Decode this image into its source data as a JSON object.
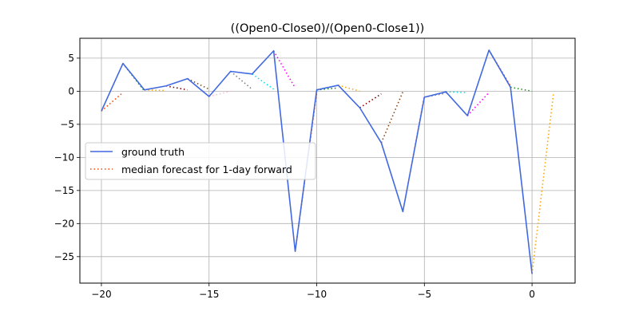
{
  "chart_data": {
    "type": "line",
    "title": "((Open0-Close0)/(Open0-Close1))",
    "xlabel": "",
    "ylabel": "",
    "xlim": [
      -21,
      2
    ],
    "ylim": [
      -29,
      8
    ],
    "xticks": [
      -20,
      -15,
      -10,
      -5,
      0
    ],
    "xtick_labels": [
      "−20",
      "−15",
      "−10",
      "−5",
      "0"
    ],
    "yticks": [
      5,
      0,
      -5,
      -10,
      -15,
      -20,
      -25
    ],
    "ytick_labels": [
      "5",
      "0",
      "−5",
      "−10",
      "−15",
      "−20",
      "−25"
    ],
    "grid": true,
    "legend_position": "center-left",
    "legend": [
      "ground truth",
      "median forecast for 1-day forward"
    ],
    "series": [
      {
        "name": "ground truth",
        "color": "#4169e1",
        "style": "solid",
        "x": [
          -20,
          -19,
          -18,
          -17,
          -16,
          -15,
          -14,
          -13,
          -12,
          -11,
          -10,
          -9,
          -8,
          -7,
          -6,
          -5,
          -4,
          -3,
          -2,
          -1,
          0
        ],
        "y": [
          -3.0,
          4.2,
          0.2,
          0.8,
          1.9,
          -0.8,
          3.0,
          2.6,
          6.1,
          -24.2,
          0.2,
          0.9,
          -2.5,
          -7.8,
          -18.2,
          -0.9,
          -0.1,
          -3.7,
          6.2,
          0.6,
          -27.6
        ]
      }
    ],
    "forecast_segments": [
      {
        "x": [
          -20,
          -19
        ],
        "y": [
          -3.0,
          -0.2
        ],
        "color": "#ff4500"
      },
      {
        "x": [
          -19,
          -18
        ],
        "y": [
          4.2,
          0.0
        ],
        "color": "#228b22"
      },
      {
        "x": [
          -18,
          -17
        ],
        "y": [
          0.2,
          0.1
        ],
        "color": "#ffa500"
      },
      {
        "x": [
          -17,
          -16
        ],
        "y": [
          0.8,
          0.2
        ],
        "color": "#800000"
      },
      {
        "x": [
          -16,
          -15
        ],
        "y": [
          1.9,
          0.3
        ],
        "color": "#8b4513"
      },
      {
        "x": [
          -15,
          -14
        ],
        "y": [
          -0.8,
          0.0
        ],
        "color": "#ffc0cb"
      },
      {
        "x": [
          -14,
          -13
        ],
        "y": [
          3.0,
          0.3
        ],
        "color": "#808080"
      },
      {
        "x": [
          -13,
          -12
        ],
        "y": [
          2.6,
          0.3
        ],
        "color": "#00e5ee"
      },
      {
        "x": [
          -12,
          -11
        ],
        "y": [
          6.1,
          0.5
        ],
        "color": "#ff00ff"
      },
      {
        "x": [
          -11,
          -10
        ],
        "y": [
          -24.2,
          -0.2
        ],
        "color": "#ff4500"
      },
      {
        "x": [
          -10,
          -9
        ],
        "y": [
          0.2,
          0.5
        ],
        "color": "#228b22"
      },
      {
        "x": [
          -9,
          -8
        ],
        "y": [
          0.9,
          0.0
        ],
        "color": "#ffa500"
      },
      {
        "x": [
          -8,
          -7
        ],
        "y": [
          -2.5,
          -0.4
        ],
        "color": "#800000"
      },
      {
        "x": [
          -7,
          -6
        ],
        "y": [
          -7.8,
          -0.1
        ],
        "color": "#8b4513"
      },
      {
        "x": [
          -6,
          -5
        ],
        "y": [
          -18.2,
          -0.3
        ],
        "color": "#ffc0cb"
      },
      {
        "x": [
          -5,
          -4
        ],
        "y": [
          -0.9,
          -0.3
        ],
        "color": "#808080"
      },
      {
        "x": [
          -4,
          -3
        ],
        "y": [
          -0.1,
          -0.2
        ],
        "color": "#00e5ee"
      },
      {
        "x": [
          -3,
          -2
        ],
        "y": [
          -3.7,
          -0.2
        ],
        "color": "#ff00ff"
      },
      {
        "x": [
          -2,
          -1
        ],
        "y": [
          6.2,
          0.8
        ],
        "color": "#ff4500"
      },
      {
        "x": [
          -1,
          0
        ],
        "y": [
          0.6,
          0.0
        ],
        "color": "#228b22"
      },
      {
        "x": [
          0,
          1
        ],
        "y": [
          -27.6,
          -0.2
        ],
        "color": "#ffa500"
      }
    ],
    "legend_colors": {
      "ground truth": "#4169e1",
      "median forecast for 1-day forward": "#ff4500"
    }
  }
}
